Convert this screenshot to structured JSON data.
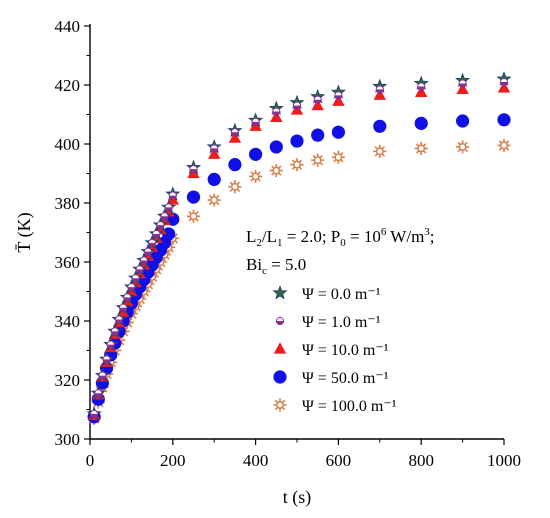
{
  "chart_data": {
    "type": "scatter",
    "xlabel": "t (s)",
    "ylabel": "T̄ (K)",
    "xlim": [
      0,
      1000
    ],
    "ylim": [
      300,
      440
    ],
    "xticks": [
      0,
      200,
      400,
      600,
      800,
      1000
    ],
    "yticks": [
      300,
      320,
      340,
      360,
      380,
      400,
      420,
      440
    ],
    "grid": false,
    "legend_position": "lower-right",
    "annotation": {
      "line1_parts": [
        "L",
        "2",
        "/L",
        "1",
        " = 2.0; P",
        "0",
        " = 10",
        "6",
        " W/m",
        "3",
        ";"
      ],
      "line2_parts": [
        "Bi",
        "c",
        " = 5.0"
      ]
    },
    "series": [
      {
        "name": "Ψ = 0.0 m⁻¹",
        "marker": "star",
        "color": "#2e6b3a",
        "x": [
          10,
          20,
          30,
          40,
          50,
          60,
          70,
          80,
          90,
          100,
          110,
          120,
          130,
          140,
          150,
          160,
          170,
          180,
          190,
          200,
          250,
          300,
          350,
          400,
          450,
          500,
          550,
          600,
          700,
          800,
          900,
          1000
        ],
        "y": [
          308.5,
          315.5,
          321.5,
          327,
          332,
          336.5,
          340.5,
          344.5,
          348,
          351.5,
          354.5,
          357.5,
          360.5,
          363.5,
          366.5,
          369.5,
          372.5,
          375.5,
          378.5,
          383,
          392,
          399,
          404.5,
          408,
          412,
          414,
          416,
          417.5,
          419.5,
          420.5,
          421.5,
          422
        ]
      },
      {
        "name": "Ψ = 1.0 m⁻¹",
        "marker": "half-circle",
        "color": "#8b2f8f",
        "x": [
          10,
          20,
          30,
          40,
          50,
          60,
          70,
          80,
          90,
          100,
          110,
          120,
          130,
          140,
          150,
          160,
          170,
          180,
          190,
          200,
          250,
          300,
          350,
          400,
          450,
          500,
          550,
          600,
          700,
          800,
          900,
          1000
        ],
        "y": [
          308.5,
          315.5,
          321.5,
          327,
          332,
          336.5,
          340.5,
          344.5,
          348,
          351.5,
          354.5,
          357.5,
          360.5,
          363.5,
          366.5,
          369.5,
          372.5,
          375.5,
          378.5,
          382.5,
          391.5,
          398.5,
          404,
          407.5,
          411,
          413,
          415,
          416.5,
          418.5,
          419.5,
          420.5,
          421
        ]
      },
      {
        "name": "Ψ = 10.0 m⁻¹",
        "marker": "triangle",
        "color": "#ee1d1d",
        "x": [
          10,
          20,
          30,
          40,
          50,
          60,
          70,
          80,
          90,
          100,
          110,
          120,
          130,
          140,
          150,
          160,
          170,
          180,
          190,
          200,
          250,
          300,
          350,
          400,
          450,
          500,
          550,
          600,
          700,
          800,
          900,
          1000
        ],
        "y": [
          308,
          315,
          321,
          326,
          331,
          335.5,
          339.5,
          343,
          346.5,
          350,
          353,
          356,
          359,
          362,
          365,
          368,
          371,
          374,
          377,
          381,
          390,
          396.5,
          402,
          406,
          409,
          411.5,
          413,
          414.5,
          416.5,
          417.5,
          418.5,
          419
        ]
      },
      {
        "name": "Ψ = 50.0 m⁻¹",
        "marker": "circle",
        "color": "#1010e6",
        "x": [
          10,
          20,
          30,
          40,
          50,
          60,
          70,
          80,
          90,
          100,
          110,
          120,
          130,
          140,
          150,
          160,
          170,
          180,
          190,
          200,
          250,
          300,
          350,
          400,
          450,
          500,
          550,
          600,
          700,
          800,
          900,
          1000
        ],
        "y": [
          307.5,
          313.5,
          319,
          324,
          328.5,
          332.5,
          336.5,
          340,
          343,
          346,
          349,
          351.5,
          354,
          356.5,
          359,
          361.5,
          364,
          366.5,
          369.5,
          374.5,
          382,
          388,
          393,
          396.5,
          399,
          401,
          403,
          404,
          406,
          407,
          407.8,
          408.2
        ]
      },
      {
        "name": "Ψ = 100.0 m⁻¹",
        "marker": "sun",
        "color": "#d9804a",
        "x": [
          10,
          20,
          30,
          40,
          50,
          60,
          70,
          80,
          90,
          100,
          110,
          120,
          130,
          140,
          150,
          160,
          170,
          180,
          190,
          200,
          250,
          300,
          350,
          400,
          450,
          500,
          550,
          600,
          700,
          800,
          900,
          1000
        ],
        "y": [
          307,
          312.5,
          317.5,
          322,
          326,
          330,
          333.5,
          336.5,
          339.5,
          342.5,
          345,
          347.5,
          350,
          352.5,
          355,
          357.5,
          360,
          362.5,
          365,
          368,
          375.5,
          381,
          385.5,
          389,
          391,
          393,
          394.5,
          395.5,
          397.5,
          398.5,
          399,
          399.5
        ]
      }
    ]
  }
}
